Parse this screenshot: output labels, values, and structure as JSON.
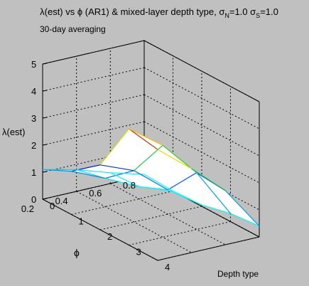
{
  "chart_data": {
    "type": "surface",
    "title": "λ(est) vs φ (AR1) & mixed-layer depth type, σN=1.0 σS=1.0",
    "title_parts": {
      "main": "λ(est) vs ϕ (AR1) & mixed-layer depth type, σ",
      "sub_n": "N",
      "mid": "=1.0 σ",
      "sub_s": "S",
      "end": "=1.0"
    },
    "subtitle": "30-day averaging",
    "xlabel": "Depth type",
    "ylabel": "ϕ",
    "zlabel": "λ(est)",
    "x_ticks": [
      "0",
      "1",
      "2",
      "3",
      "4"
    ],
    "y_ticks": [
      "0.2",
      "0.4",
      "0.6",
      "0.8"
    ],
    "z_ticks": [
      "0",
      "1",
      "2",
      "3",
      "4",
      "5"
    ],
    "xlim": [
      0,
      4
    ],
    "ylim": [
      0.2,
      0.8
    ],
    "zlim": [
      0,
      5
    ],
    "grid": true,
    "depth_type": [
      0,
      1,
      2,
      3,
      4
    ],
    "phi": [
      0.2,
      0.4,
      0.6,
      0.8
    ],
    "lambda": [
      [
        1.1,
        1.6,
        2.4,
        4.3,
        4.1
      ],
      [
        0.8,
        1.05,
        1.9,
        3.4,
        3.1
      ],
      [
        0.4,
        0.45,
        0.9,
        2.1,
        2.0
      ],
      [
        0.05,
        0.0,
        0.05,
        0.3,
        0.4
      ]
    ]
  }
}
